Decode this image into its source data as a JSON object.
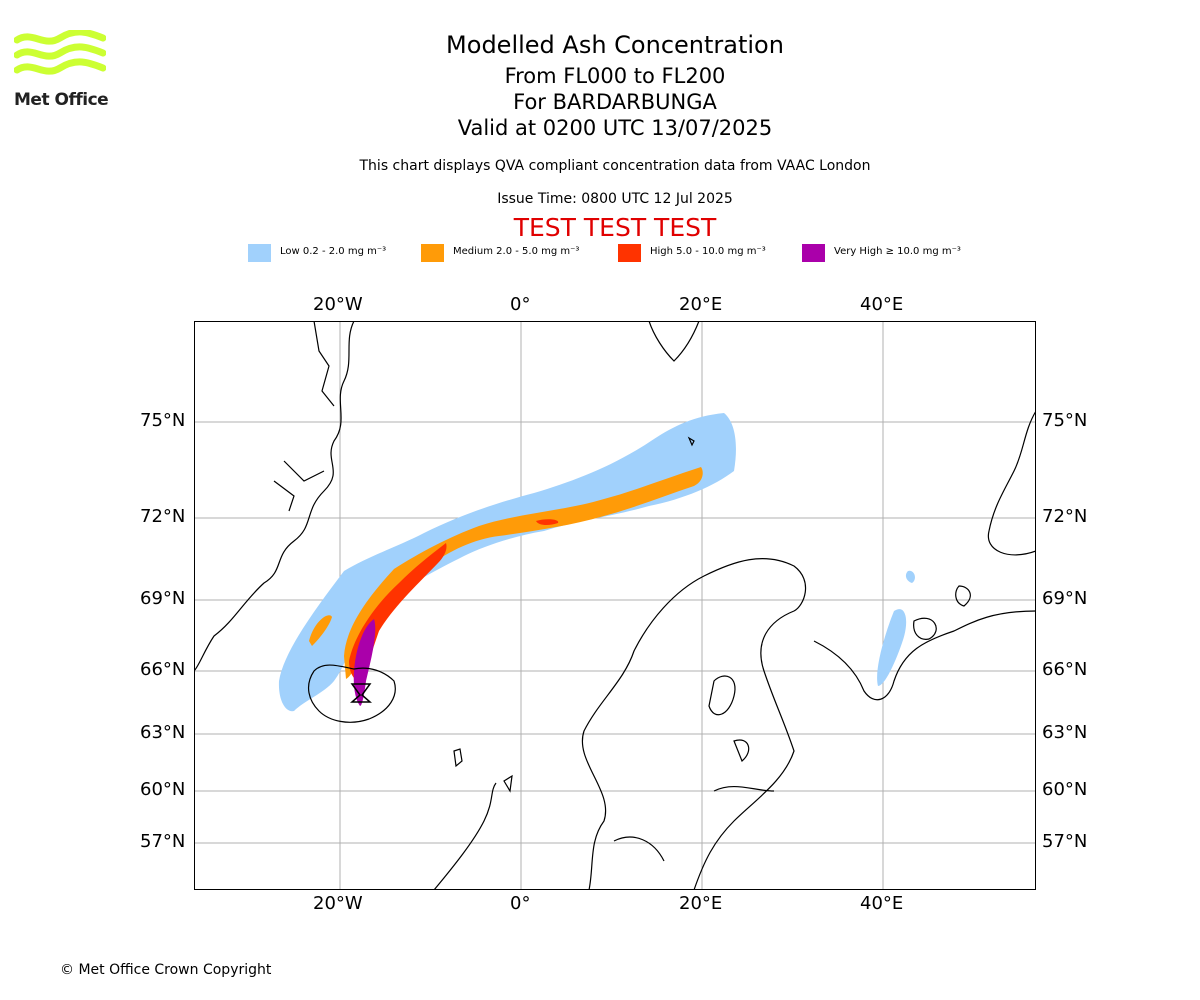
{
  "logo": {
    "text": "Met Office",
    "color": "#ccff33"
  },
  "titles": {
    "main": "Modelled Ash Concentration",
    "levels": "From FL000 to FL200",
    "volcano": "For BARDARBUNGA",
    "valid": "Valid at 0200 UTC 13/07/2025",
    "note": "This chart displays QVA compliant concentration data from VAAC London",
    "issue": "Issue Time: 0800 UTC 12 Jul 2025",
    "test": "TEST TEST TEST"
  },
  "legend": [
    {
      "label": "Low 0.2 - 2.0 mg m⁻³",
      "color": "#a1d1fc"
    },
    {
      "label": "Medium 2.0 - 5.0 mg m⁻³",
      "color": "#ff9b08"
    },
    {
      "label": "High 5.0 - 10.0 mg m⁻³",
      "color": "#ff3300"
    },
    {
      "label": "Very High ≥ 10.0 mg m⁻³",
      "color": "#aa00aa"
    }
  ],
  "axes": {
    "lon_labels": [
      "20°W",
      "0°",
      "20°E",
      "40°E"
    ],
    "lat_labels": [
      "75°N",
      "72°N",
      "69°N",
      "66°N",
      "63°N",
      "60°N",
      "57°N"
    ]
  },
  "copyright": "© Met Office Crown Copyright"
}
